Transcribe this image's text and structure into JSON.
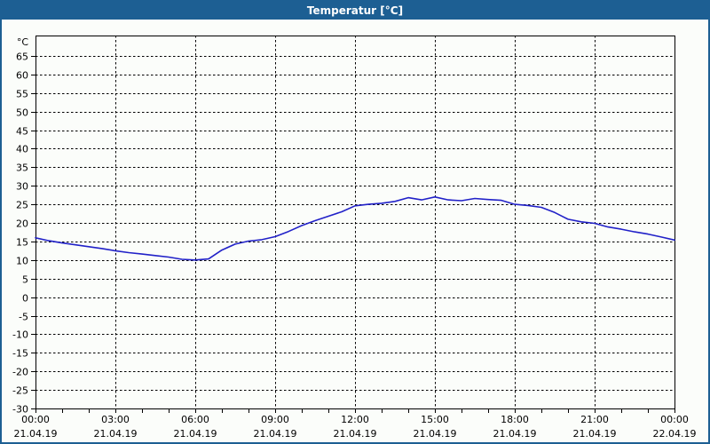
{
  "window": {
    "title": "Temperatur [°C]",
    "title_bar_color": "#1d5f93",
    "border_color": "#1d5f93",
    "background_color": "#fbfdfa"
  },
  "chart_data": {
    "type": "line",
    "title": "Temperatur [°C]",
    "y_unit": "°C",
    "ylim": [
      -30,
      70.5
    ],
    "y_tick_step": 5,
    "y_tick_labels": [
      65,
      60,
      55,
      50,
      45,
      40,
      35,
      30,
      25,
      20,
      15,
      10,
      5,
      0,
      -5,
      -10,
      -15,
      -20,
      -25,
      -30
    ],
    "x_hours_range": [
      0,
      24
    ],
    "x_minor_tick_step_hours": 1,
    "x_major_ticks": [
      {
        "hour": 0,
        "time": "00:00",
        "date": "21.04.19"
      },
      {
        "hour": 3,
        "time": "03:00",
        "date": "21.04.19"
      },
      {
        "hour": 6,
        "time": "06:00",
        "date": "21.04.19"
      },
      {
        "hour": 9,
        "time": "09:00",
        "date": "21.04.19"
      },
      {
        "hour": 12,
        "time": "12:00",
        "date": "21.04.19"
      },
      {
        "hour": 15,
        "time": "15:00",
        "date": "21.04.19"
      },
      {
        "hour": 18,
        "time": "18:00",
        "date": "21.04.19"
      },
      {
        "hour": 21,
        "time": "21:00",
        "date": "21.04.19"
      },
      {
        "hour": 24,
        "time": "00:00",
        "date": "22.04.19"
      }
    ],
    "grid": "dashed-black",
    "legend": "none",
    "line_color": "#2121c8",
    "series": [
      {
        "name": "Temperatur",
        "x_hours": [
          0,
          0.5,
          1,
          1.5,
          2,
          2.5,
          3,
          3.5,
          4,
          4.5,
          5,
          5.5,
          6,
          6.5,
          7,
          7.5,
          8,
          8.5,
          9,
          9.5,
          10,
          10.5,
          11,
          11.5,
          12,
          12.5,
          13,
          13.5,
          14,
          14.5,
          15,
          15.5,
          16,
          16.5,
          17,
          17.5,
          18,
          18.5,
          19,
          19.5,
          20,
          20.5,
          21,
          21.5,
          22,
          22.5,
          23,
          23.5,
          24
        ],
        "values": [
          16.0,
          15.2,
          14.6,
          14.1,
          13.6,
          13.1,
          12.5,
          12.0,
          11.6,
          11.2,
          10.8,
          10.2,
          10.0,
          10.3,
          12.7,
          14.3,
          15.1,
          15.5,
          16.3,
          17.7,
          19.3,
          20.6,
          21.8,
          23.0,
          24.6,
          25.0,
          25.3,
          25.8,
          26.8,
          26.2,
          27.0,
          26.2,
          26.0,
          26.6,
          26.3,
          26.1,
          25.0,
          24.7,
          24.2,
          22.8,
          21.0,
          20.3,
          19.9,
          18.9,
          18.3,
          17.6,
          17.0,
          16.2,
          15.4
        ]
      }
    ]
  }
}
